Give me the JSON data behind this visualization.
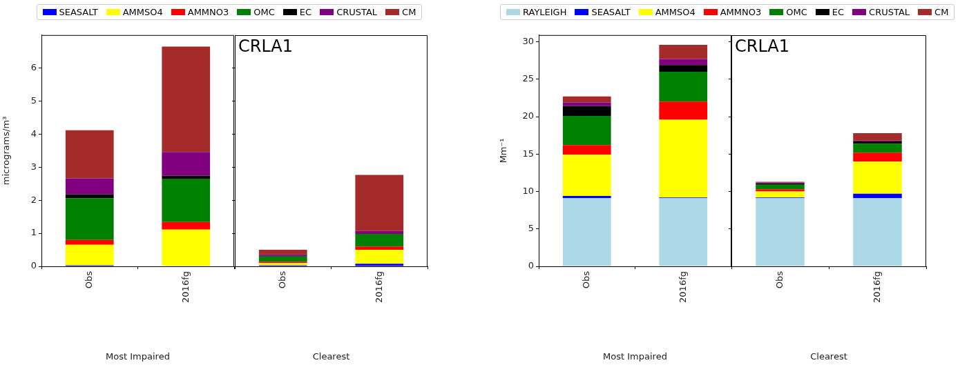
{
  "chart_data": [
    {
      "type": "bar",
      "stacked": true,
      "categories": [
        "Obs",
        "2016fg"
      ],
      "xlabel": "Most Impaired",
      "ylabel": "micrograms/m³",
      "ylim": [
        0,
        7
      ],
      "yticks": [
        0,
        1,
        2,
        3,
        4,
        5,
        6
      ],
      "legend": "top",
      "series": [
        {
          "name": "SEASALT",
          "color": "#0000ff",
          "values": [
            0.03,
            null
          ]
        },
        {
          "name": "AMMSO4",
          "color": "#ffff00",
          "values": [
            0.62,
            1.11
          ]
        },
        {
          "name": "AMMNO3",
          "color": "#ff0000",
          "values": [
            0.15,
            0.23
          ]
        },
        {
          "name": "OMC",
          "color": "#008000",
          "values": [
            1.26,
            1.31
          ]
        },
        {
          "name": "EC",
          "color": "#000000",
          "values": [
            0.12,
            0.09
          ]
        },
        {
          "name": "CRUSTAL",
          "color": "#800080",
          "values": [
            0.48,
            0.72
          ]
        },
        {
          "name": "CM",
          "color": "#a52a2a",
          "values": [
            1.46,
            3.19
          ]
        }
      ]
    },
    {
      "type": "bar",
      "stacked": true,
      "categories": [
        "Obs",
        "2016fg"
      ],
      "xlabel": "Clearest",
      "ylim": [
        0,
        7
      ],
      "yticks": [
        0,
        1,
        2,
        3,
        4,
        5,
        6
      ],
      "tick_labels": "x",
      "annotations": [
        "CRLA1"
      ],
      "series": [
        {
          "color": "#0000ff",
          "values": [
            0.03,
            0.08
          ]
        },
        {
          "color": "#ffff00",
          "values": [
            0.07,
            0.42
          ]
        },
        {
          "color": "#ff0000",
          "values": [
            0.04,
            0.1
          ]
        },
        {
          "color": "#008000",
          "values": [
            0.16,
            0.38
          ]
        },
        {
          "color": "#000000",
          "values": [
            0.02,
            null
          ]
        },
        {
          "color": "#800080",
          "values": [
            0.04,
            0.09
          ]
        },
        {
          "color": "#a52a2a",
          "values": [
            0.14,
            1.7
          ]
        }
      ]
    },
    {
      "type": "bar",
      "stacked": true,
      "categories": [
        "Obs",
        "2016fg"
      ],
      "xlabel": "Most Impaired",
      "ylabel": "Mm⁻¹",
      "ylim": [
        0,
        30.9
      ],
      "yticks": [
        0,
        5,
        10,
        15,
        20,
        25,
        30
      ],
      "legend": "top",
      "series": [
        {
          "name": "RAYLEIGH",
          "color": "#add8e6",
          "values": [
            9.1,
            9.1
          ]
        },
        {
          "name": "SEASALT",
          "color": "#0000ff",
          "values": [
            0.3,
            0.1
          ]
        },
        {
          "name": "AMMSO4",
          "color": "#ffff00",
          "values": [
            5.5,
            10.4
          ]
        },
        {
          "name": "AMMNO3",
          "color": "#ff0000",
          "values": [
            1.3,
            2.4
          ]
        },
        {
          "name": "OMC",
          "color": "#008000",
          "values": [
            3.9,
            4.0
          ]
        },
        {
          "name": "EC",
          "color": "#000000",
          "values": [
            1.3,
            0.9
          ]
        },
        {
          "name": "CRUSTAL",
          "color": "#800080",
          "values": [
            0.5,
            0.8
          ]
        },
        {
          "name": "CM",
          "color": "#a52a2a",
          "values": [
            0.8,
            1.9
          ]
        }
      ]
    },
    {
      "type": "bar",
      "stacked": true,
      "categories": [
        "Obs",
        "2016fg"
      ],
      "xlabel": "Clearest",
      "ylim": [
        0,
        30.9
      ],
      "yticks": [
        0,
        5,
        10,
        15,
        20,
        25,
        30
      ],
      "tick_labels": "x",
      "annotations": [
        "CRLA1"
      ],
      "series": [
        {
          "color": "#add8e6",
          "values": [
            9.1,
            9.1
          ]
        },
        {
          "color": "#0000ff",
          "values": [
            0.1,
            0.6
          ]
        },
        {
          "color": "#ffff00",
          "values": [
            0.8,
            4.3
          ]
        },
        {
          "color": "#ff0000",
          "values": [
            0.3,
            1.2
          ]
        },
        {
          "color": "#008000",
          "values": [
            0.6,
            1.2
          ]
        },
        {
          "color": "#000000",
          "values": [
            0.2,
            0.3
          ]
        },
        {
          "color": "#800080",
          "values": [
            0.1,
            0.1
          ]
        },
        {
          "color": "#a52a2a",
          "values": [
            0.1,
            1.0
          ]
        }
      ]
    }
  ]
}
